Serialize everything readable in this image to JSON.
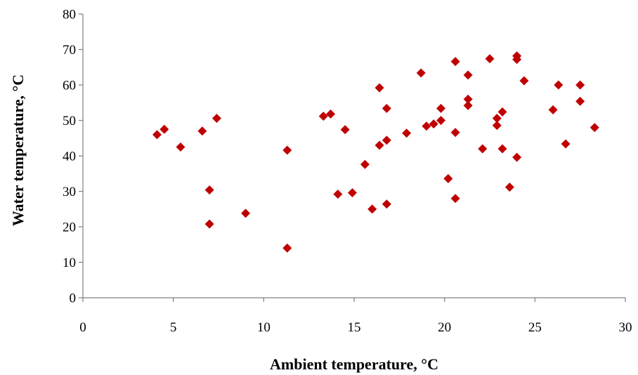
{
  "chart_data": {
    "type": "scatter",
    "title": "",
    "xlabel": "Ambient temperature, °C",
    "ylabel": "Water temperature, °C",
    "xlim": [
      0,
      30
    ],
    "ylim": [
      0,
      80
    ],
    "x_ticks": [
      "0",
      "5",
      "10",
      "15",
      "20",
      "25",
      "30"
    ],
    "y_ticks": [
      "0",
      "10",
      "20",
      "30",
      "40",
      "50",
      "60",
      "70",
      "80"
    ],
    "grid": false,
    "legend": "none",
    "marker_color": "#c00000",
    "marker": "diamond",
    "series": [
      {
        "points": [
          [
            4.1,
            46
          ],
          [
            4.5,
            47.5
          ],
          [
            5.4,
            42.5
          ],
          [
            6.6,
            47
          ],
          [
            7.4,
            50.6
          ],
          [
            7.0,
            30.4
          ],
          [
            7.0,
            20.8
          ],
          [
            9.0,
            23.8
          ],
          [
            11.3,
            41.6
          ],
          [
            11.3,
            14
          ],
          [
            13.3,
            51.2
          ],
          [
            13.7,
            51.8
          ],
          [
            14.1,
            29.2
          ],
          [
            14.5,
            47.4
          ],
          [
            14.9,
            29.6
          ],
          [
            15.6,
            37.6
          ],
          [
            16.0,
            25
          ],
          [
            16.4,
            59.2
          ],
          [
            16.4,
            43
          ],
          [
            16.8,
            53.4
          ],
          [
            16.8,
            44.4
          ],
          [
            16.8,
            26.4
          ],
          [
            17.9,
            46.4
          ],
          [
            18.7,
            63.4
          ],
          [
            19.0,
            48.4
          ],
          [
            19.4,
            49
          ],
          [
            19.8,
            53.4
          ],
          [
            19.8,
            50
          ],
          [
            20.2,
            33.6
          ],
          [
            20.6,
            66.6
          ],
          [
            20.6,
            46.6
          ],
          [
            20.6,
            28
          ],
          [
            21.3,
            62.8
          ],
          [
            21.3,
            56
          ],
          [
            21.3,
            54.2
          ],
          [
            22.1,
            42
          ],
          [
            22.5,
            67.4
          ],
          [
            22.9,
            50.6
          ],
          [
            22.9,
            48.6
          ],
          [
            23.2,
            52.4
          ],
          [
            23.2,
            42
          ],
          [
            23.6,
            31.2
          ],
          [
            24.0,
            68.2
          ],
          [
            24.0,
            67.2
          ],
          [
            24.0,
            39.6
          ],
          [
            24.4,
            61.2
          ],
          [
            26.0,
            53
          ],
          [
            26.3,
            60
          ],
          [
            26.7,
            43.4
          ],
          [
            27.5,
            60
          ],
          [
            27.5,
            55.4
          ],
          [
            28.3,
            48
          ]
        ]
      }
    ]
  }
}
